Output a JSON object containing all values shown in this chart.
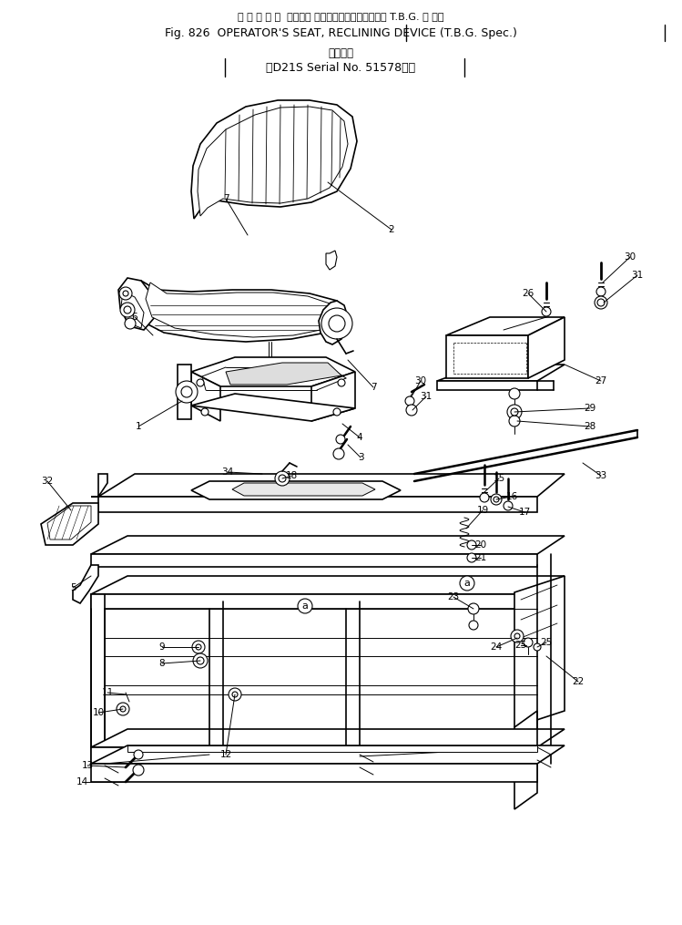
{
  "title_line1": "オ ペ レ ー タ  シート， リクライニングデバイス（ T.B.G. 仕 様）",
  "title_line2": "Fig. 826  OPERATOR'S SEAT, RECLINING DEVICE (T.B.G. Spec.)",
  "title_line3": "適用号機",
  "title_line4": "D21S Serial No. 51578～）",
  "bg_color": "#ffffff",
  "figsize": [
    7.49,
    10.15
  ],
  "dpi": 100
}
